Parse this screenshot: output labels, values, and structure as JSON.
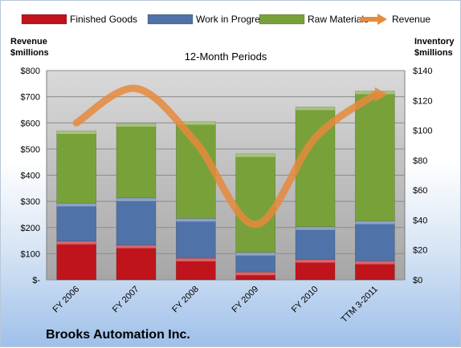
{
  "chart_data": {
    "type": "bar",
    "stacked": true,
    "title": "12-Month Periods",
    "footer_title": "Brooks Automation Inc.",
    "categories": [
      "FY 2006",
      "FY 2007",
      "FY 2008",
      "FY 2009",
      "FY 2010",
      "TTM 3-2011"
    ],
    "left_axis": {
      "label_line1": "Revenue",
      "label_line2": "$millions",
      "ylim": [
        0,
        800
      ],
      "ticks": [
        0,
        100,
        200,
        300,
        400,
        500,
        600,
        700,
        800
      ],
      "tick_labels": [
        "$-",
        "$100",
        "$200",
        "$300",
        "$400",
        "$500",
        "$600",
        "$700",
        "$800"
      ]
    },
    "right_axis": {
      "label_line1": "Inventory",
      "label_line2": "$millions",
      "ylim": [
        0,
        140
      ],
      "ticks": [
        0,
        20,
        40,
        60,
        80,
        100,
        120,
        140
      ],
      "tick_labels": [
        "$0",
        "$20",
        "$40",
        "$60",
        "$80",
        "$100",
        "$120",
        "$140"
      ]
    },
    "series": [
      {
        "name": "Finished Goods",
        "kind": "bar",
        "color": "#c0141c",
        "values": [
          148,
          133,
          83,
          30,
          78,
          72
        ]
      },
      {
        "name": "Work in Progress",
        "kind": "bar",
        "color": "#4f72a8",
        "values": [
          145,
          180,
          152,
          75,
          125,
          153
        ]
      },
      {
        "name": "Raw Materials",
        "kind": "bar",
        "color": "#79a13a",
        "values": [
          277,
          285,
          370,
          377,
          458,
          497
        ]
      },
      {
        "name": "Revenue",
        "kind": "line",
        "axis": "right",
        "color": "#e68a3c",
        "values": [
          105,
          128,
          92,
          37,
          95,
          124
        ]
      }
    ],
    "grid": true,
    "legend_position": "top"
  }
}
